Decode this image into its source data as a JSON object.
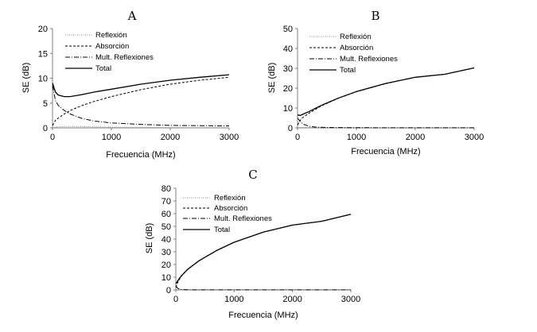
{
  "chart_data": [
    {
      "panel": "A",
      "type": "line",
      "title": "A",
      "xlabel": "Frecuencia (MHz)",
      "ylabel": "SE (dB)",
      "xlim": [
        0,
        3000
      ],
      "ylim": [
        0,
        20
      ],
      "xticks": [
        0,
        1000,
        2000,
        3000
      ],
      "yticks": [
        0,
        5,
        10,
        15,
        20
      ],
      "legend_position": "top-center",
      "series": [
        {
          "name": "Reflexión",
          "style": "dotted",
          "x": [
            1,
            50,
            100,
            200,
            300,
            500,
            700,
            1000,
            1500,
            2000,
            2500,
            3000
          ],
          "y": [
            0.1,
            0.15,
            0.2,
            0.25,
            0.3,
            0.25,
            0.2,
            0.15,
            0.1,
            0.05,
            0.05,
            0.05
          ]
        },
        {
          "name": "Absorción",
          "style": "dashed",
          "x": [
            1,
            50,
            100,
            200,
            300,
            500,
            700,
            1000,
            1500,
            2000,
            2500,
            3000
          ],
          "y": [
            0.5,
            1.5,
            2.0,
            2.8,
            3.5,
            4.5,
            5.3,
            6.3,
            7.7,
            8.8,
            9.6,
            10.2
          ]
        },
        {
          "name": "Mult. Reflexiones",
          "style": "dashdot",
          "x": [
            1,
            50,
            100,
            200,
            300,
            500,
            700,
            1000,
            1500,
            2000,
            2500,
            3000
          ],
          "y": [
            8.5,
            5.5,
            4.5,
            3.5,
            2.8,
            1.9,
            1.4,
            1.0,
            0.7,
            0.5,
            0.45,
            0.4
          ]
        },
        {
          "name": "Total",
          "style": "solid",
          "x": [
            1,
            50,
            100,
            200,
            300,
            500,
            700,
            1000,
            1500,
            2000,
            2500,
            3000
          ],
          "y": [
            9.0,
            7.2,
            6.6,
            6.3,
            6.3,
            6.7,
            7.2,
            7.8,
            8.8,
            9.6,
            10.2,
            10.7
          ]
        }
      ]
    },
    {
      "panel": "B",
      "type": "line",
      "title": "B",
      "xlabel": "Frecuencia (MHz)",
      "ylabel": "SE (dB)",
      "xlim": [
        0,
        3000
      ],
      "ylim": [
        0,
        50
      ],
      "xticks": [
        0,
        1000,
        2000,
        3000
      ],
      "yticks": [
        0,
        10,
        20,
        30,
        40,
        50
      ],
      "legend_position": "top-center",
      "series": [
        {
          "name": "Reflexión",
          "style": "dotted",
          "x": [
            1,
            100,
            300,
            1000,
            2000,
            3000
          ],
          "y": [
            0.2,
            0.2,
            0.15,
            0.1,
            0.05,
            0.05
          ]
        },
        {
          "name": "Absorción",
          "style": "dashed",
          "x": [
            1,
            50,
            100,
            200,
            400,
            700,
            1000,
            1500,
            2000,
            2500,
            3000
          ],
          "y": [
            1.5,
            4.0,
            5.5,
            7.5,
            11.0,
            15.0,
            18.2,
            22.3,
            25.5,
            27.0,
            30.2
          ]
        },
        {
          "name": "Mult. Reflexiones",
          "style": "dashdot",
          "x": [
            1,
            50,
            100,
            200,
            300,
            500,
            1000,
            3000
          ],
          "y": [
            5.0,
            3.0,
            1.8,
            0.8,
            0.4,
            0.2,
            0.1,
            0.05
          ]
        },
        {
          "name": "Total",
          "style": "solid",
          "x": [
            1,
            50,
            100,
            200,
            400,
            700,
            1000,
            1500,
            2000,
            2500,
            3000
          ],
          "y": [
            6.5,
            6.3,
            7.0,
            8.3,
            11.3,
            15.1,
            18.3,
            22.4,
            25.5,
            27.0,
            30.2
          ]
        }
      ]
    },
    {
      "panel": "C",
      "type": "line",
      "title": "C",
      "xlabel": "Frecuencia (MHz)",
      "ylabel": "SE (dB)",
      "xlim": [
        0,
        3000
      ],
      "ylim": [
        0,
        80
      ],
      "xticks": [
        0,
        1000,
        2000,
        3000
      ],
      "yticks": [
        0,
        10,
        20,
        30,
        40,
        50,
        60,
        70,
        80
      ],
      "legend_position": "top-left",
      "series": [
        {
          "name": "Reflexión",
          "style": "dotted",
          "x": [
            1,
            100,
            500,
            1000,
            2000,
            3000
          ],
          "y": [
            0.2,
            0.15,
            0.1,
            0.05,
            0.05,
            0.05
          ]
        },
        {
          "name": "Absorción",
          "style": "dashed",
          "x": [
            1,
            25,
            50,
            100,
            200,
            400,
            700,
            1000,
            1500,
            2000,
            2500,
            3000
          ],
          "y": [
            2.0,
            5.0,
            7.5,
            11.0,
            16.0,
            23.0,
            31.0,
            37.5,
            45.5,
            51.0,
            54.0,
            59.5
          ]
        },
        {
          "name": "Mult. Reflexiones",
          "style": "dashdot",
          "x": [
            1,
            25,
            50,
            100,
            200,
            500,
            1000,
            3000
          ],
          "y": [
            3.0,
            1.5,
            0.8,
            0.3,
            0.1,
            0.05,
            0.05,
            0.05
          ]
        },
        {
          "name": "Total",
          "style": "solid",
          "x": [
            1,
            25,
            50,
            100,
            200,
            400,
            700,
            1000,
            1500,
            2000,
            2500,
            3000
          ],
          "y": [
            5.0,
            6.5,
            8.3,
            11.3,
            16.1,
            23.0,
            31.0,
            37.5,
            45.5,
            51.0,
            54.0,
            59.5
          ]
        }
      ]
    }
  ]
}
